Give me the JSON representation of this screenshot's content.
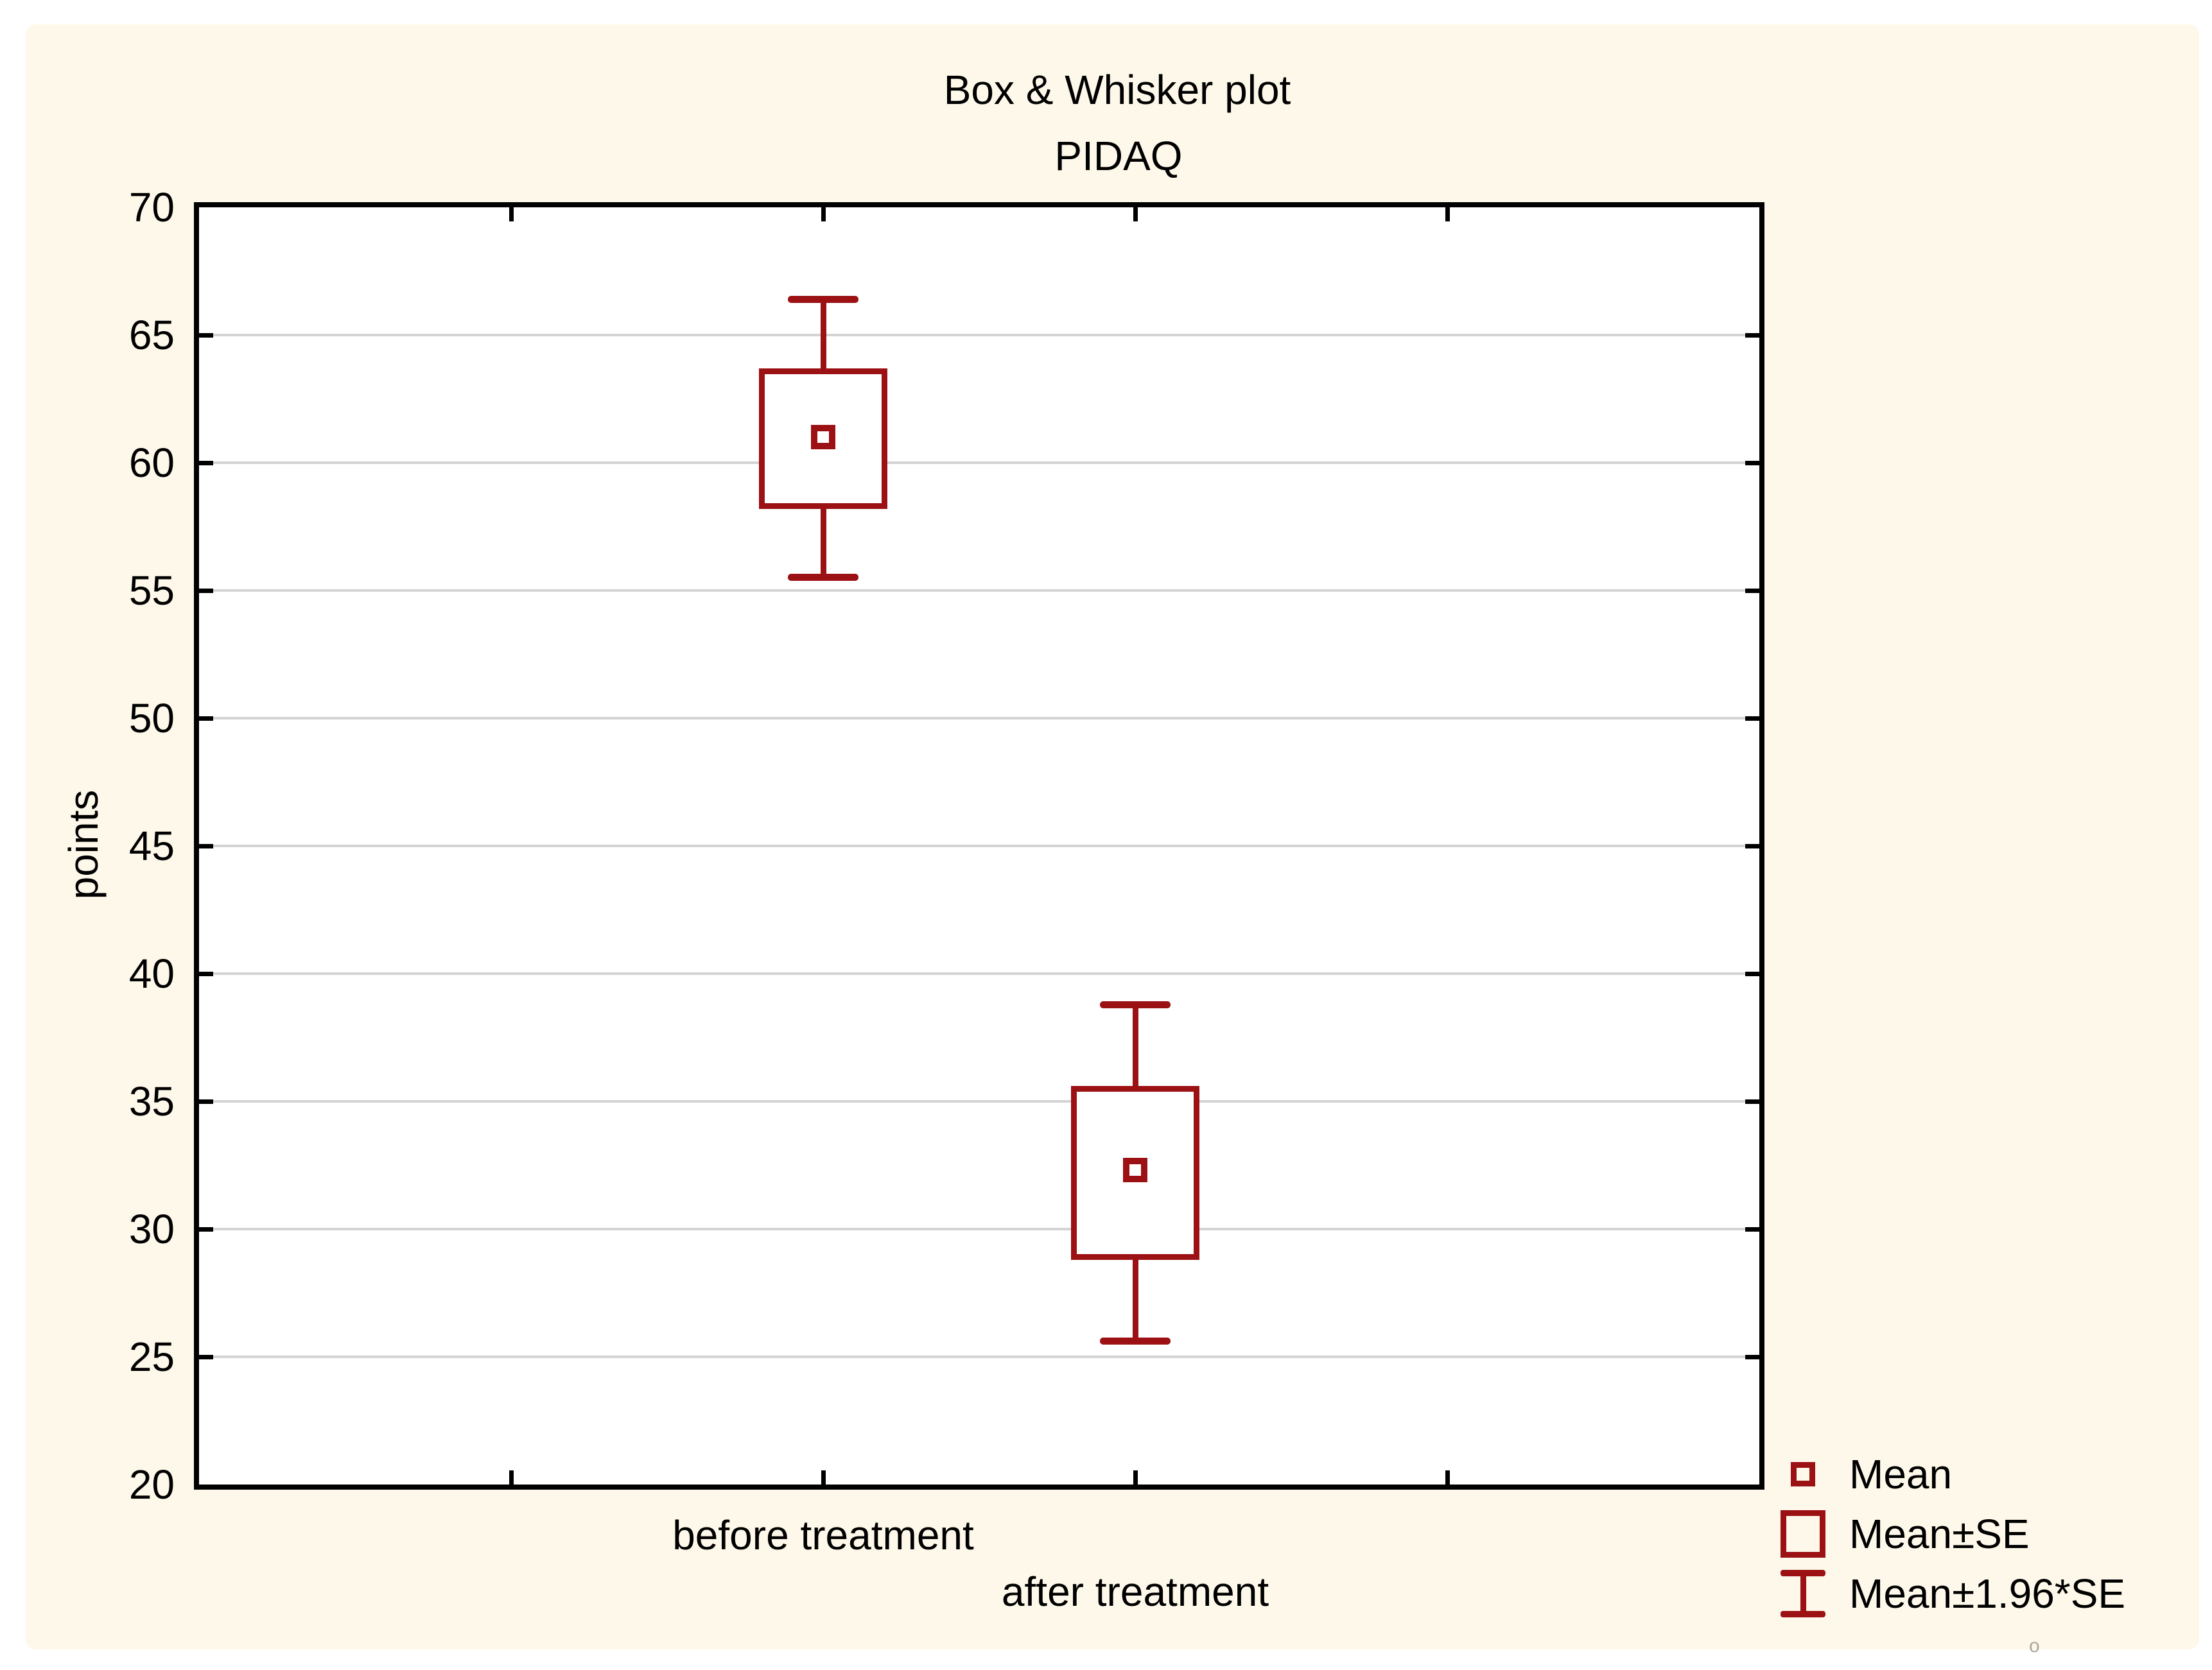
{
  "figure": {
    "title": "Box & Whisker plot",
    "subtitle": "PIDAQ"
  },
  "chart_data": {
    "type": "box",
    "title": "Box & Whisker plot",
    "subtitle": "PIDAQ",
    "xlabel": "",
    "ylabel": "points",
    "ylim": [
      20,
      70
    ],
    "y_tick_step": 5,
    "y_tick_labels": [
      "70",
      "65",
      "60",
      "55",
      "50",
      "45",
      "40",
      "35",
      "30",
      "25",
      "20"
    ],
    "grid": "horizontal-only",
    "legend_position": "bottom-right",
    "categories": [
      "before treatment",
      "after treatment"
    ],
    "series": [
      {
        "name": "before treatment",
        "mean": 61.0,
        "se_low": 58.2,
        "se_high": 63.7,
        "ci_low": 55.5,
        "ci_high": 66.4
      },
      {
        "name": "after treatment",
        "mean": 32.3,
        "se_low": 28.8,
        "se_high": 35.6,
        "ci_low": 25.6,
        "ci_high": 38.8
      }
    ],
    "legend": [
      {
        "label": "Mean",
        "icon": "mean-point-icon"
      },
      {
        "label": "Mean±SE",
        "icon": "se-box-icon"
      },
      {
        "label": "Mean±1.96*SE",
        "icon": "ci-whisker-icon"
      }
    ]
  },
  "colors": {
    "series_red": "#9B1114",
    "gridline": "#D4D4D4",
    "axis": "#000000",
    "panel_background": "#FDF8E9",
    "plot_background": "#FFFFFF",
    "text": "#000000"
  },
  "artifact_text": "o"
}
